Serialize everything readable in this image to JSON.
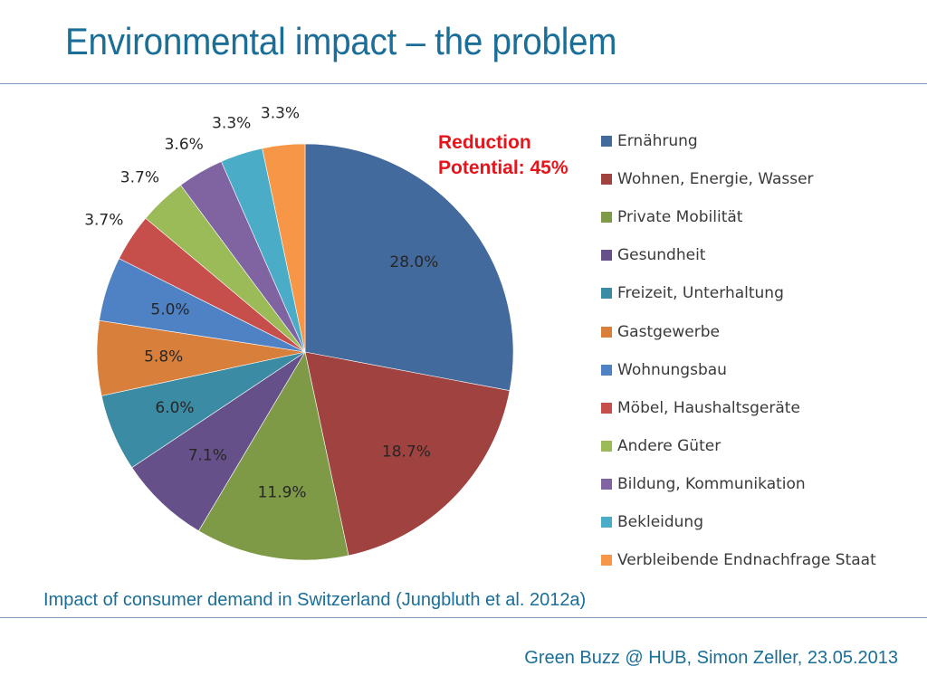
{
  "slide": {
    "title": "Environmental impact – the problem",
    "annotation_line1": "Reduction",
    "annotation_line2": "Potential: 45%",
    "caption": "Impact of consumer demand in Switzerland (Jungbluth et al. 2012a)",
    "footer": "Green Buzz @ HUB, Simon Zeller, 23.05.2013",
    "theme_color": "#1a6e98",
    "annotation_color": "#e8141c"
  },
  "chart_data": {
    "type": "pie",
    "title": "",
    "start_angle": "12 o'clock",
    "direction": "clockwise",
    "legend_position": "right",
    "categories": [
      "Ernährung",
      "Wohnen, Energie, Wasser",
      "Private Mobilität",
      "Gesundheit",
      "Freizeit, Unterhaltung",
      "Gastgewerbe",
      "Wohnungsbau",
      "Möbel, Haushaltsgeräte",
      "Andere Güter",
      "Bildung, Kommunikation",
      "Bekleidung",
      "Verbleibende Endnachfrage Staat"
    ],
    "values": [
      28.0,
      18.7,
      11.9,
      7.1,
      6.0,
      5.8,
      5.0,
      3.7,
      3.7,
      3.6,
      3.3,
      3.3
    ],
    "labels": [
      "28.0%",
      "18.7%",
      "11.9%",
      "7.1%",
      "6.0%",
      "5.8%",
      "5.0%",
      "3.7%",
      "3.7%",
      "3.6%",
      "3.3%",
      "3.3%"
    ],
    "colors": [
      "#436a9c",
      "#a0423f",
      "#7e9a46",
      "#66508a",
      "#3a8ba3",
      "#d8803b",
      "#4f82c4",
      "#c64f4c",
      "#9bbb59",
      "#8064a2",
      "#4aacc6",
      "#f79646"
    ],
    "unit": "%"
  }
}
